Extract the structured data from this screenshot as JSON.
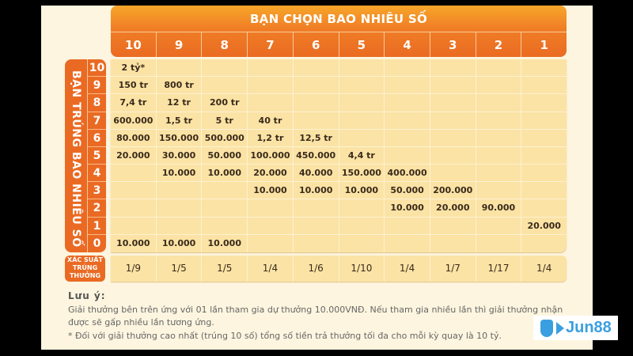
{
  "header": {
    "title": "BẠN CHỌN BAO NHIÊU SỐ",
    "columns": [
      "10",
      "9",
      "8",
      "7",
      "6",
      "5",
      "4",
      "3",
      "2",
      "1"
    ]
  },
  "side_label": "BẠN TRÚNG BAO NHIÊU SỐ",
  "rows": [
    {
      "matched": "10",
      "cells": [
        "2 tỷ*",
        "",
        "",
        "",
        "",
        "",
        "",
        "",
        "",
        ""
      ]
    },
    {
      "matched": "9",
      "cells": [
        "150 tr",
        "800 tr",
        "",
        "",
        "",
        "",
        "",
        "",
        "",
        ""
      ]
    },
    {
      "matched": "8",
      "cells": [
        "7,4 tr",
        "12 tr",
        "200 tr",
        "",
        "",
        "",
        "",
        "",
        "",
        ""
      ]
    },
    {
      "matched": "7",
      "cells": [
        "600.000",
        "1,5 tr",
        "5 tr",
        "40 tr",
        "",
        "",
        "",
        "",
        "",
        ""
      ]
    },
    {
      "matched": "6",
      "cells": [
        "80.000",
        "150.000",
        "500.000",
        "1,2 tr",
        "12,5 tr",
        "",
        "",
        "",
        "",
        ""
      ]
    },
    {
      "matched": "5",
      "cells": [
        "20.000",
        "30.000",
        "50.000",
        "100.000",
        "450.000",
        "4,4 tr",
        "",
        "",
        "",
        ""
      ]
    },
    {
      "matched": "4",
      "cells": [
        "",
        "10.000",
        "10.000",
        "20.000",
        "40.000",
        "150.000",
        "400.000",
        "",
        "",
        ""
      ]
    },
    {
      "matched": "3",
      "cells": [
        "",
        "",
        "",
        "10.000",
        "10.000",
        "10.000",
        "50.000",
        "200.000",
        "",
        ""
      ]
    },
    {
      "matched": "2",
      "cells": [
        "",
        "",
        "",
        "",
        "",
        "",
        "10.000",
        "20.000",
        "90.000",
        ""
      ]
    },
    {
      "matched": "1",
      "cells": [
        "",
        "",
        "",
        "",
        "",
        "",
        "",
        "",
        "",
        "20.000"
      ]
    },
    {
      "matched": "0",
      "cells": [
        "10.000",
        "10.000",
        "10.000",
        "",
        "",
        "",
        "",
        "",
        "",
        ""
      ]
    }
  ],
  "probability": {
    "label_lines": [
      "XÁC SUẤT",
      "TRÚNG",
      "THƯỞNG"
    ],
    "values": [
      "1/9",
      "1/5",
      "1/5",
      "1/4",
      "1/6",
      "1/10",
      "1/4",
      "1/7",
      "1/17",
      "1/4"
    ]
  },
  "notes": {
    "title": "Lưu ý:",
    "line1": "Giải thưởng bên trên ứng với 01 lần tham gia dự thưởng 10.000VNĐ. Nếu tham gia nhiều lần thì giải thưởng nhận",
    "line2": "được sẽ gấp nhiều lần tương ứng.",
    "line3": "*  Đối với giải thưởng cao nhất (trúng 10 số) tổng số tiền trả thưởng tối đa cho mỗi kỳ quay là 10 tỷ."
  },
  "watermark": {
    "text": "Jun88",
    "color": "#3a9fe0"
  },
  "colors": {
    "header_orange": "#f07e26",
    "cell_bg": "#fbe3a5",
    "page_bg": "#fdf5df"
  }
}
